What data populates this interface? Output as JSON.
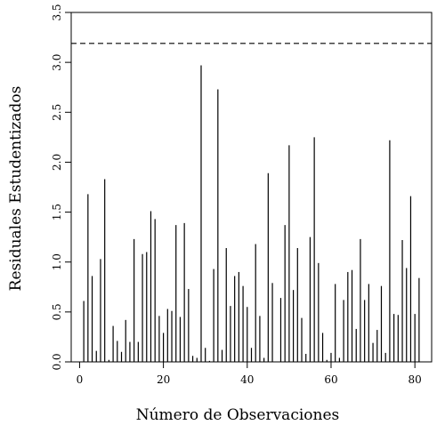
{
  "chart_data": {
    "type": "bar",
    "style": "needle",
    "title": "",
    "xlabel": "Número de Observaciones",
    "ylabel": "Residuales Estudentizados",
    "xlim": [
      -2,
      84
    ],
    "ylim": [
      0,
      3.5
    ],
    "xticks": [
      0,
      20,
      40,
      60,
      80
    ],
    "yticks": [
      0.0,
      0.5,
      1.0,
      1.5,
      2.0,
      2.5,
      3.0,
      3.5
    ],
    "ytick_labels": [
      "0.0",
      "0.5",
      "1.0",
      "1.5",
      "2.0",
      "2.5",
      "3.0",
      "3.5"
    ],
    "reference_line": {
      "y": 3.19,
      "style": "dashed"
    },
    "grid": false,
    "x": [
      1,
      2,
      3,
      4,
      5,
      6,
      7,
      8,
      9,
      10,
      11,
      12,
      13,
      14,
      15,
      16,
      17,
      18,
      19,
      20,
      21,
      22,
      23,
      24,
      25,
      26,
      27,
      28,
      29,
      30,
      31,
      32,
      33,
      34,
      35,
      36,
      37,
      38,
      39,
      40,
      41,
      42,
      43,
      44,
      45,
      46,
      47,
      48,
      49,
      50,
      51,
      52,
      53,
      54,
      55,
      56,
      57,
      58,
      59,
      60,
      61,
      62,
      63,
      64,
      65,
      66,
      67,
      68,
      69,
      70,
      71,
      72,
      73,
      74,
      75,
      76,
      77,
      78,
      79,
      80,
      81
    ],
    "values": [
      0.61,
      1.68,
      0.86,
      0.11,
      1.03,
      1.83,
      0.02,
      0.36,
      0.21,
      0.1,
      0.42,
      0.2,
      1.23,
      0.2,
      1.08,
      1.1,
      1.51,
      1.43,
      0.46,
      0.29,
      0.53,
      0.51,
      1.37,
      0.45,
      1.39,
      0.73,
      0.06,
      0.04,
      2.97,
      0.14,
      0.01,
      0.93,
      2.73,
      0.12,
      1.14,
      0.56,
      0.86,
      0.9,
      0.76,
      0.55,
      0.14,
      1.18,
      0.46,
      0.04,
      1.89,
      0.79,
      0.0,
      0.64,
      1.37,
      2.17,
      0.72,
      1.14,
      0.44,
      0.08,
      1.25,
      2.25,
      0.99,
      0.29,
      0.02,
      0.09,
      0.78,
      0.04,
      0.62,
      0.9,
      0.92,
      0.33,
      1.23,
      0.62,
      0.78,
      0.19,
      0.32,
      0.76,
      0.09,
      2.22,
      0.48,
      0.47,
      1.22,
      0.94,
      1.66,
      0.48,
      0.84
    ],
    "color": "#000000"
  }
}
